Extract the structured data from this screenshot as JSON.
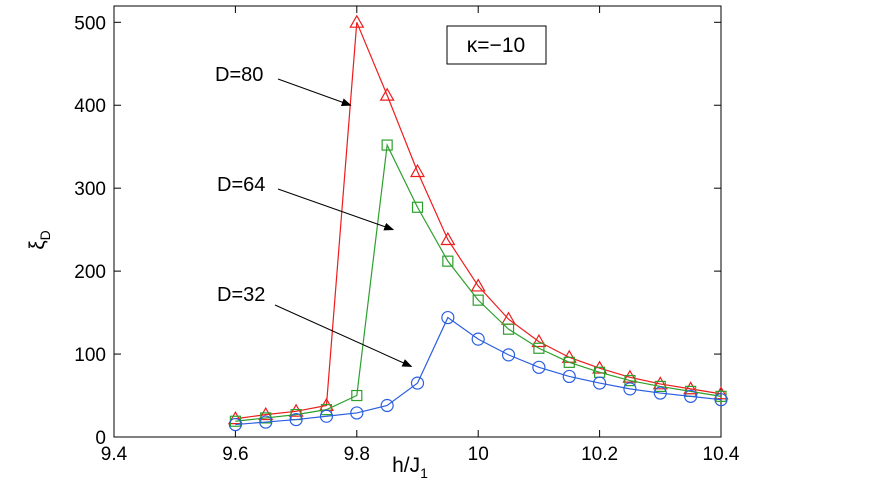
{
  "chart_data": {
    "type": "line",
    "title": "",
    "xlabel": "h/J",
    "xlabel_sub": "1",
    "ylabel": "ξ",
    "ylabel_sub": "D",
    "xlim": [
      9.4,
      10.4
    ],
    "ylim": [
      0,
      520
    ],
    "xticks": [
      9.4,
      9.6,
      9.8,
      10,
      10.2,
      10.4
    ],
    "xtick_labels": [
      "9.4",
      "9.6",
      "9.8",
      "10",
      "10.2",
      "10.4"
    ],
    "yticks": [
      0,
      100,
      200,
      300,
      400,
      500
    ],
    "ytick_labels": [
      "0",
      "100",
      "200",
      "300",
      "400",
      "500"
    ],
    "grid": false,
    "legend_box": "κ=−10",
    "x": [
      9.6,
      9.65,
      9.7,
      9.75,
      9.8,
      9.85,
      9.9,
      9.95,
      10.0,
      10.05,
      10.1,
      10.15,
      10.2,
      10.25,
      10.3,
      10.35,
      10.4
    ],
    "series": [
      {
        "name": "D=80",
        "color": "#ee1c1c",
        "marker": "triangle",
        "values": [
          22,
          27,
          31,
          38,
          500,
          412,
          320,
          238,
          182,
          142,
          115,
          96,
          83,
          72,
          64,
          58,
          52
        ]
      },
      {
        "name": "D=64",
        "color": "#2ca02c",
        "marker": "square",
        "values": [
          19,
          23,
          27,
          33,
          50,
          352,
          277,
          212,
          165,
          130,
          107,
          90,
          78,
          68,
          61,
          55,
          49
        ]
      },
      {
        "name": "D=32",
        "color": "#2b5fe0",
        "marker": "circle",
        "values": [
          15,
          18,
          21,
          25,
          29,
          38,
          65,
          144,
          118,
          99,
          84,
          73,
          65,
          58,
          53,
          49,
          45
        ]
      }
    ],
    "annotations": [
      {
        "text": "D=80",
        "arrow_to": [
          9.79,
          400
        ]
      },
      {
        "text": "D=64",
        "arrow_to": [
          9.86,
          250
        ]
      },
      {
        "text": "D=32",
        "arrow_to": [
          9.89,
          85
        ]
      }
    ]
  }
}
